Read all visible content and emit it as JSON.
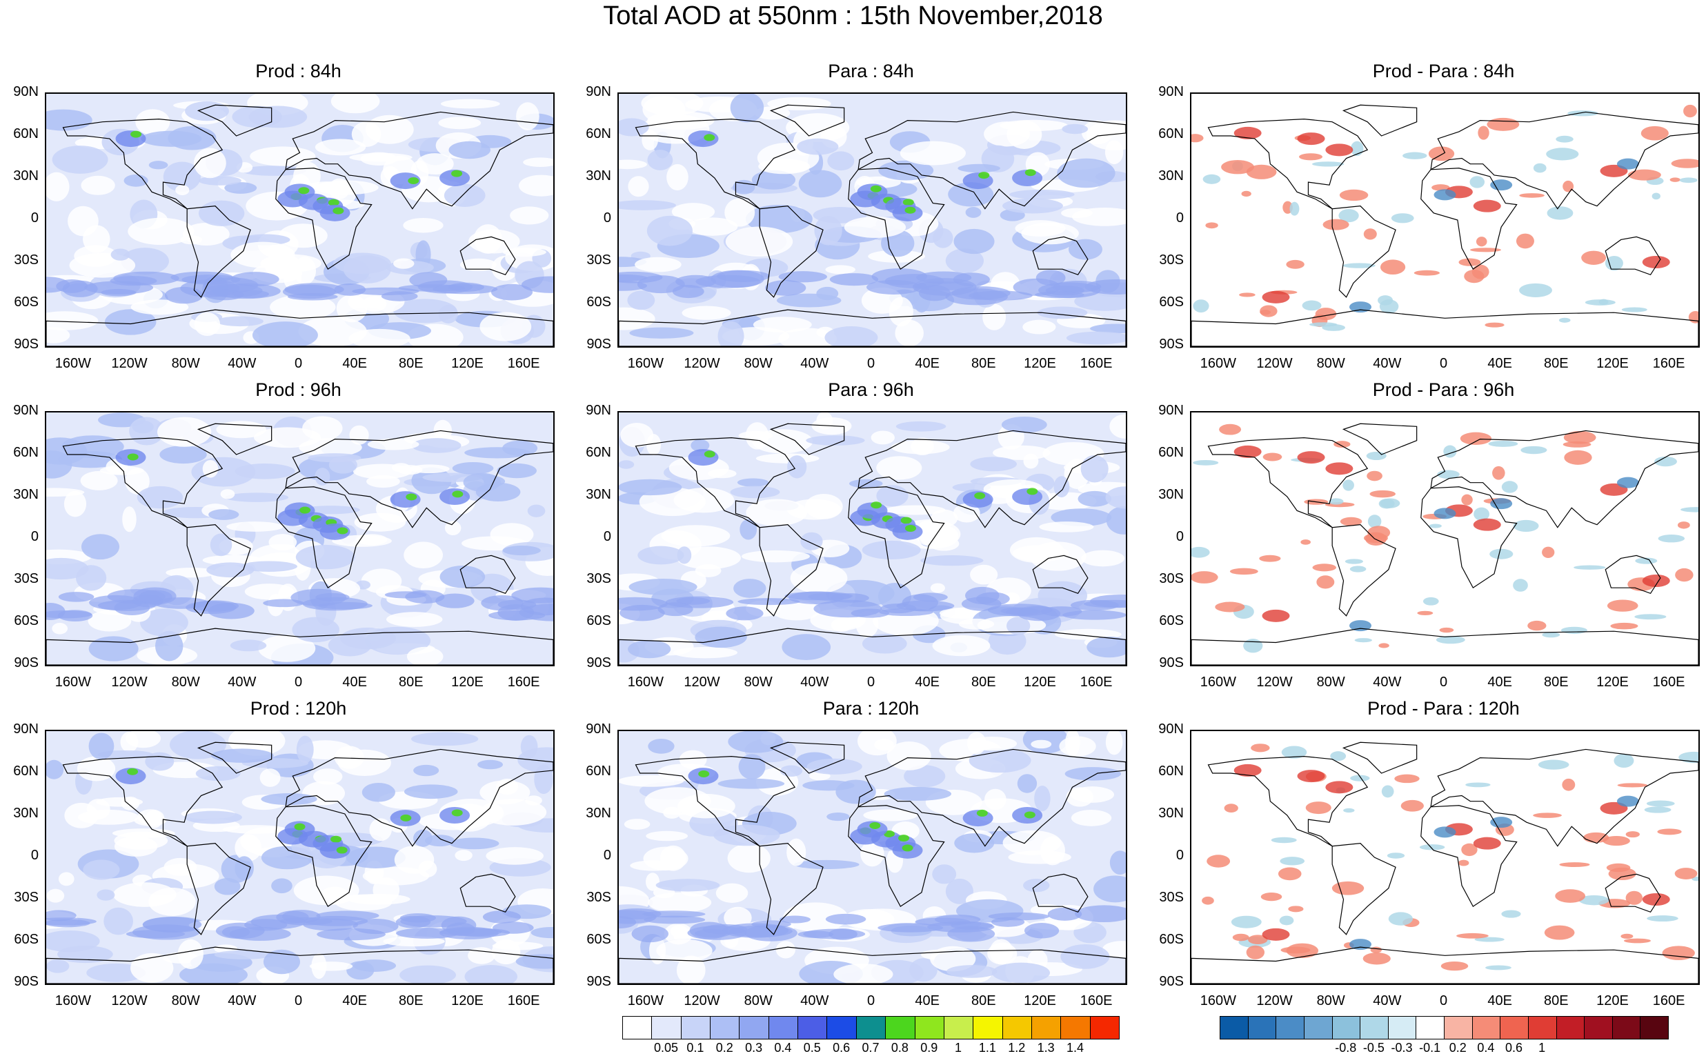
{
  "title": "Total AOD at 550nm : 15th November,2018",
  "panels": [
    {
      "title": "Prod : 84h",
      "kind": "aod",
      "seed": 11
    },
    {
      "title": "Para : 84h",
      "kind": "aod",
      "seed": 12
    },
    {
      "title": "Prod - Para : 84h",
      "kind": "diff",
      "seed": 13
    },
    {
      "title": "Prod : 96h",
      "kind": "aod",
      "seed": 21
    },
    {
      "title": "Para : 96h",
      "kind": "aod",
      "seed": 22
    },
    {
      "title": "Prod - Para : 96h",
      "kind": "diff",
      "seed": 23
    },
    {
      "title": "Prod : 120h",
      "kind": "aod",
      "seed": 31
    },
    {
      "title": "Para : 120h",
      "kind": "aod",
      "seed": 32
    },
    {
      "title": "Prod - Para : 120h",
      "kind": "diff",
      "seed": 33
    }
  ],
  "lat_labels": [
    "90N",
    "60N",
    "30N",
    "0",
    "30S",
    "60S",
    "90S"
  ],
  "lon_labels": [
    "160W",
    "120W",
    "80W",
    "40W",
    "0",
    "40E",
    "80E",
    "120E",
    "160E"
  ],
  "aod_colorbar": {
    "labels": [
      "0.05",
      "0.1",
      "0.2",
      "0.3",
      "0.4",
      "0.5",
      "0.6",
      "0.7",
      "0.8",
      "0.9",
      "1",
      "1.1",
      "1.2",
      "1.3",
      "1.4"
    ],
    "colors": [
      "#ffffff",
      "#e3e9fb",
      "#c8d4f8",
      "#adbff5",
      "#91a7f1",
      "#7088ee",
      "#4c5ee6",
      "#1c4ce6",
      "#0d8f8f",
      "#4cd61e",
      "#8fe61e",
      "#c8ee4c",
      "#f5f500",
      "#f5c800",
      "#f5a100",
      "#f57800",
      "#f52800"
    ]
  },
  "diff_colorbar": {
    "labels": [
      "-0.8",
      "-0.5",
      "-0.3",
      "-0.1",
      "0.2",
      "0.4",
      "0.6",
      "1"
    ],
    "colors": [
      "#0b5ba6",
      "#2a73b8",
      "#4b8cc6",
      "#6ea6d2",
      "#8cc1dc",
      "#afd8e8",
      "#d6ecf5",
      "#ffffff",
      "#f8b4a4",
      "#f58c77",
      "#ef6450",
      "#e03d34",
      "#c21e26",
      "#a01020",
      "#7c0a18",
      "#580510"
    ]
  },
  "colors": {
    "land_line": "#000000",
    "aod_base": "#c8d4f8",
    "diff_pos": "#e03d34",
    "diff_neg": "#4b8cc6"
  }
}
